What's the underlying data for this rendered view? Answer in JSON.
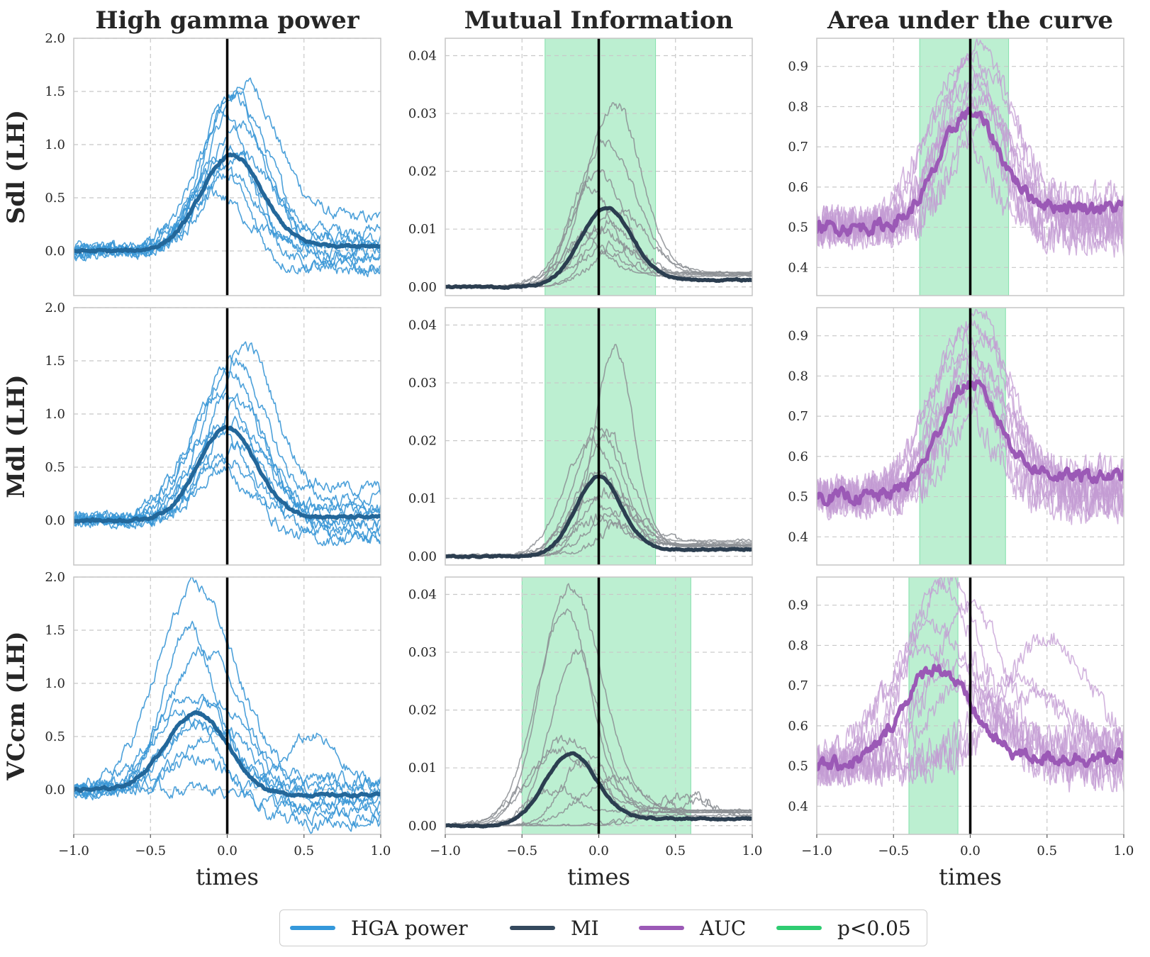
{
  "chart_data": {
    "type": "line",
    "grid": true,
    "column_titles": [
      "High gamma power",
      "Mutual Information",
      "Area under the curve"
    ],
    "row_labels": [
      "Sdl (LH)",
      "Mdl (LH)",
      "VCcm (LH)"
    ],
    "xlabel": "times",
    "xlim": [
      -1.0,
      1.0
    ],
    "x_ticks": [
      -1.0,
      -0.5,
      0.0,
      0.5,
      1.0
    ],
    "x_tick_labels": [
      "−1.0",
      "−0.5",
      "0.0",
      "0.5",
      "1.0"
    ],
    "event_line_x": 0.0,
    "columns": [
      {
        "metric": "HGA power",
        "ylim": [
          -0.42,
          2.0
        ],
        "y_ticks": [
          0.0,
          0.5,
          1.0,
          1.5,
          2.0
        ],
        "y_tick_labels": [
          "0.0",
          "0.5",
          "1.0",
          "1.5",
          "2.0"
        ],
        "baseline": 0.0,
        "n_trials": 10,
        "rows": [
          {
            "mean_peak_time": 0.03,
            "mean_peak": 0.9,
            "mean_width": 0.2,
            "mean_end": 0.05,
            "trial_peaks": [
              1.58,
              1.5,
              1.45,
              1.3,
              1.2,
              0.95,
              0.9,
              0.8,
              0.7,
              0.55
            ],
            "trial_peak_times": [
              0.12,
              0.03,
              0.05,
              -0.03,
              0.08,
              0.0,
              0.1,
              -0.05,
              0.02,
              -0.1
            ],
            "trial_ends": [
              0.3,
              0.2,
              0.1,
              0.05,
              0.0,
              -0.05,
              -0.1,
              -0.15,
              -0.18,
              0.1
            ]
          },
          {
            "mean_peak_time": 0.0,
            "mean_peak": 0.87,
            "mean_width": 0.19,
            "mean_end": 0.03,
            "trial_peaks": [
              1.65,
              1.5,
              1.4,
              1.2,
              1.1,
              0.95,
              0.8,
              0.7,
              0.6,
              0.55
            ],
            "trial_peak_times": [
              0.12,
              0.05,
              0.0,
              -0.05,
              0.08,
              0.02,
              -0.08,
              0.1,
              -0.02,
              -0.12
            ],
            "trial_ends": [
              0.3,
              0.2,
              0.1,
              0.05,
              0.0,
              -0.05,
              -0.1,
              -0.15,
              -0.18,
              0.12
            ]
          },
          {
            "mean_peak_time": -0.2,
            "mean_peak": 0.72,
            "mean_width": 0.2,
            "mean_end": -0.05,
            "trial_peaks": [
              1.9,
              1.55,
              1.3,
              0.9,
              0.85,
              0.75,
              0.6,
              0.55,
              0.5,
              0.3
            ],
            "trial_peak_times": [
              -0.2,
              -0.25,
              -0.15,
              -0.22,
              -0.1,
              -0.3,
              -0.18,
              -0.05,
              0.55,
              -0.2
            ],
            "trial_ends": [
              0.1,
              0.05,
              0.0,
              -0.05,
              -0.1,
              -0.15,
              -0.2,
              -0.25,
              0.05,
              -0.3
            ]
          }
        ]
      },
      {
        "metric": "MI",
        "ylim": [
          -0.0015,
          0.043
        ],
        "y_ticks": [
          0.0,
          0.01,
          0.02,
          0.03,
          0.04
        ],
        "y_tick_labels": [
          "0.00",
          "0.01",
          "0.02",
          "0.03",
          "0.04"
        ],
        "baseline": 0.0,
        "n_trials": 10,
        "rows": [
          {
            "significant_window": [
              -0.35,
              0.37
            ],
            "mean_peak_time": 0.05,
            "mean_peak": 0.0137,
            "mean_width": 0.17,
            "mean_end": 0.0012,
            "trial_peaks": [
              0.0315,
              0.025,
              0.0195,
              0.017,
              0.013,
              0.011,
              0.0095,
              0.0085,
              0.007,
              0.006
            ],
            "trial_peak_times": [
              0.1,
              0.05,
              0.0,
              -0.05,
              0.12,
              0.08,
              0.0,
              -0.08,
              0.15,
              0.03
            ]
          },
          {
            "significant_window": [
              -0.35,
              0.37
            ],
            "mean_peak_time": 0.0,
            "mean_peak": 0.0138,
            "mean_width": 0.15,
            "mean_end": 0.0012,
            "trial_peaks": [
              0.036,
              0.0225,
              0.021,
              0.02,
              0.014,
              0.011,
              0.0095,
              0.008,
              0.0065,
              0.005
            ],
            "trial_peak_times": [
              0.1,
              0.0,
              0.05,
              -0.05,
              0.0,
              0.08,
              -0.05,
              0.12,
              0.02,
              0.15
            ]
          },
          {
            "significant_window": [
              -0.5,
              0.6
            ],
            "mean_peak_time": -0.18,
            "mean_peak": 0.0125,
            "mean_width": 0.17,
            "mean_end": 0.0012,
            "trial_peaks": [
              0.041,
              0.0375,
              0.03,
              0.015,
              0.013,
              0.011,
              0.0085,
              0.0065,
              0.005,
              0.004
            ],
            "trial_peak_times": [
              -0.18,
              -0.22,
              -0.15,
              -0.2,
              -0.25,
              -0.1,
              0.1,
              -0.3,
              0.55,
              0.6
            ]
          }
        ]
      },
      {
        "metric": "AUC",
        "ylim": [
          0.33,
          0.97
        ],
        "y_ticks": [
          0.4,
          0.5,
          0.6,
          0.7,
          0.8,
          0.9
        ],
        "y_tick_labels": [
          "0.4",
          "0.5",
          "0.6",
          "0.7",
          "0.8",
          "0.9"
        ],
        "baseline": 0.5,
        "n_trials": 10,
        "rows": [
          {
            "significant_window": [
              -0.33,
              0.25
            ],
            "mean_peak_time": 0.0,
            "mean_peak": 0.785,
            "mean_width": 0.2,
            "mean_end": 0.55,
            "trial_peaks": [
              0.95,
              0.93,
              0.9,
              0.88,
              0.86,
              0.84,
              0.82,
              0.8,
              0.78,
              0.75
            ],
            "trial_peak_times": [
              0.05,
              0.0,
              -0.05,
              0.1,
              0.02,
              -0.08,
              0.08,
              -0.02,
              0.12,
              -0.1
            ]
          },
          {
            "significant_window": [
              -0.33,
              0.23
            ],
            "mean_peak_time": 0.0,
            "mean_peak": 0.78,
            "mean_width": 0.2,
            "mean_end": 0.55,
            "trial_peaks": [
              0.96,
              0.93,
              0.9,
              0.89,
              0.86,
              0.84,
              0.82,
              0.8,
              0.77,
              0.75
            ],
            "trial_peak_times": [
              0.06,
              0.0,
              -0.05,
              0.1,
              0.02,
              -0.08,
              0.08,
              -0.02,
              0.12,
              -0.1
            ]
          },
          {
            "significant_window": [
              -0.4,
              -0.08
            ],
            "mean_peak_time": -0.22,
            "mean_peak": 0.745,
            "mean_width": 0.22,
            "mean_end": 0.52,
            "trial_peaks": [
              0.97,
              0.95,
              0.9,
              0.85,
              0.82,
              0.78,
              0.75,
              0.72,
              0.7,
              0.68
            ],
            "trial_peak_times": [
              -0.15,
              -0.2,
              0.0,
              -0.25,
              0.5,
              -0.3,
              -0.1,
              0.3,
              -0.05,
              0.45
            ]
          }
        ]
      }
    ],
    "legend": {
      "location": "bottom-center",
      "items": [
        {
          "label": "HGA power",
          "color": "#3498db"
        },
        {
          "label": "MI",
          "color": "#34495e"
        },
        {
          "label": "AUC",
          "color": "#9b59b6"
        },
        {
          "label": "p<0.05",
          "color": "#2ecc71"
        }
      ]
    },
    "colors": {
      "hga_trial": "#3a97d6",
      "hga_mean": "#23679a",
      "mi_trial": "#8c8f94",
      "mi_mean": "#2c3e50",
      "auc_trial": "#c39bd3",
      "auc_mean": "#9b59b6",
      "sig_fill": "#2ecc71",
      "event_line": "#000000"
    }
  }
}
